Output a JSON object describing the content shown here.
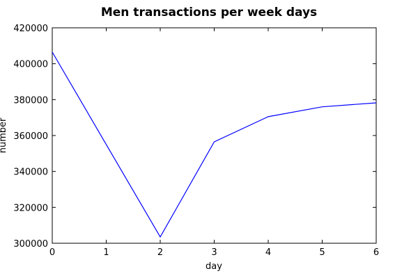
{
  "chart_data": {
    "type": "line",
    "title": "Men transactions per week days",
    "xlabel": "day",
    "ylabel": "number",
    "x": [
      0,
      1,
      2,
      3,
      4,
      5,
      6
    ],
    "series": [
      {
        "values": [
          406500,
          355000,
          303500,
          356500,
          370500,
          376000,
          378200
        ]
      }
    ],
    "xlim": [
      0,
      6
    ],
    "ylim": [
      300000,
      420000
    ],
    "xticks": [
      "0",
      "1",
      "2",
      "3",
      "4",
      "5",
      "6"
    ],
    "yticks": [
      "300000",
      "320000",
      "340000",
      "360000",
      "380000",
      "400000",
      "420000"
    ],
    "line_color": "#0000ff",
    "grid": false
  }
}
